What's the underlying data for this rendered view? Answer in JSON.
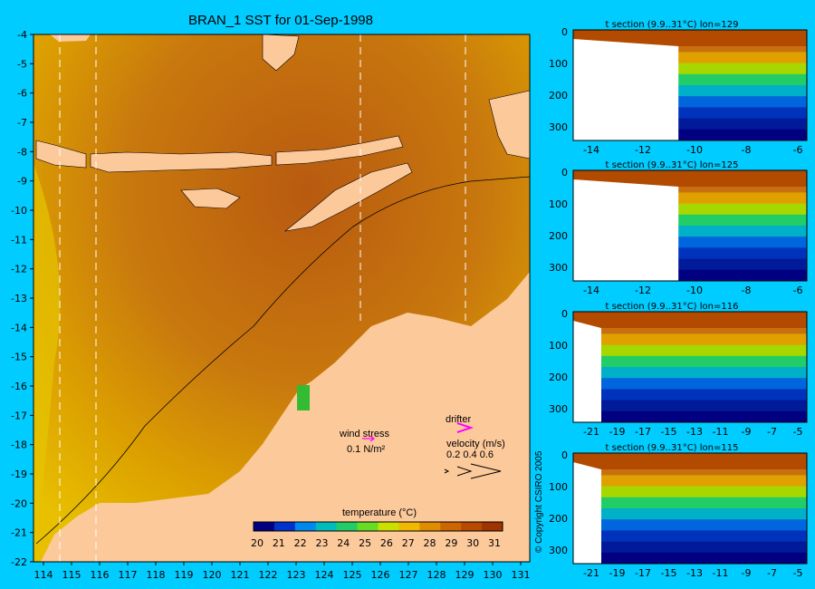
{
  "title": "BRAN_1 SST for 01-Sep-1998",
  "copyright": "© Copyright CSIRO 2005",
  "map": {
    "lat_ticks": [
      "-4",
      "-5",
      "-6",
      "-7",
      "-8",
      "-9",
      "-10",
      "-11",
      "-12",
      "-13",
      "-14",
      "-15",
      "-16",
      "-17",
      "-18",
      "-19",
      "-20",
      "-21",
      "-22"
    ],
    "lon_ticks": [
      "114",
      "115",
      "116",
      "117",
      "118",
      "119",
      "120",
      "121",
      "122",
      "123",
      "124",
      "125",
      "126",
      "127",
      "128",
      "129",
      "130",
      "131"
    ]
  },
  "legend": {
    "wind_stress_label": "wind stress",
    "wind_stress_value": "0.1 N/m²",
    "drifter_label": "drifter",
    "velocity_label": "velocity (m/s)",
    "velocity_values": "0.2 0.4 0.6"
  },
  "colorbar": {
    "label": "temperature (°C)",
    "ticks": [
      "20",
      "21",
      "22",
      "23",
      "24",
      "25",
      "26",
      "27",
      "28",
      "29",
      "30",
      "31"
    ],
    "colors": [
      "#000080",
      "#0033cc",
      "#0088ee",
      "#00bbbb",
      "#22cc66",
      "#66dd22",
      "#cce000",
      "#f0b800",
      "#e08c00",
      "#cc6600",
      "#b84a00",
      "#a03400"
    ]
  },
  "sections": [
    {
      "title": "t section (9.9..31°C) lon=129",
      "y_ticks": [
        "0",
        "100",
        "200",
        "300"
      ],
      "x_ticks": [
        "-14",
        "-12",
        "-10",
        "-8",
        "-6"
      ]
    },
    {
      "title": "t section (9.9..31°C) lon=125",
      "y_ticks": [
        "0",
        "100",
        "200",
        "300"
      ],
      "x_ticks": [
        "-14",
        "-12",
        "-10",
        "-8",
        "-6"
      ]
    },
    {
      "title": "t section (9.9..31°C) lon=116",
      "y_ticks": [
        "0",
        "100",
        "200",
        "300"
      ],
      "x_ticks": [
        "-21",
        "-19",
        "-17",
        "-15",
        "-13",
        "-11",
        "-9",
        "-7",
        "-5"
      ]
    },
    {
      "title": "t section (9.9..31°C) lon=115",
      "y_ticks": [
        "0",
        "100",
        "200",
        "300"
      ],
      "x_ticks": [
        "-21",
        "-19",
        "-17",
        "-15",
        "-13",
        "-11",
        "-9",
        "-7",
        "-5"
      ]
    }
  ]
}
